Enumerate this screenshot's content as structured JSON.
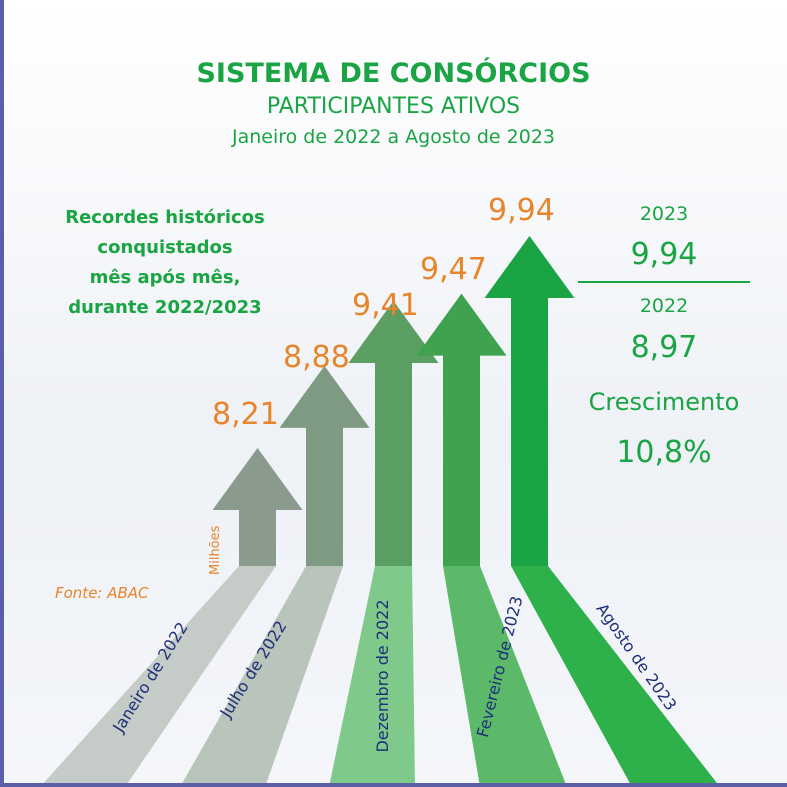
{
  "header": {
    "title": "SISTEMA DE CONSÓRCIOS",
    "subtitle": "PARTICIPANTES ATIVOS",
    "period": "Janeiro de 2022 a Agosto de 2023"
  },
  "records_note": [
    "Recordes históricos",
    "conquistados",
    "mês após mês,",
    "durante 2022/2023"
  ],
  "unit": "Milhões",
  "source": "Fonte: ABAC",
  "summary": {
    "year_a": "2023",
    "value_a": "9,94",
    "year_b": "2022",
    "value_b": "8,97",
    "growth_label": "Crescimento",
    "growth_value": "10,8%"
  },
  "colors": {
    "title": "#1aa443",
    "values": "#e8852a",
    "labels": "#1e2f7a",
    "arrows": [
      "#8a9a8c",
      "#7f9a82",
      "#5a9e62",
      "#3ea24e",
      "#1aa443"
    ],
    "strips": [
      "#c5cbc6",
      "#b9c4ba",
      "#7fc98a",
      "#5cb96a",
      "#2eb04a"
    ]
  },
  "chart_data": {
    "type": "bar",
    "title": "SISTEMA DE CONSÓRCIOS",
    "categories": [
      "Janeiro de 2022",
      "Julho de 2022",
      "Dezembro de 2022",
      "Fevereiro de 2023",
      "Agosto de 2023"
    ],
    "values": [
      8.21,
      8.88,
      9.41,
      9.47,
      9.94
    ],
    "value_labels": [
      "8,21",
      "8,88",
      "9,41",
      "9,47",
      "9,94"
    ],
    "ylabel": "Milhões"
  }
}
